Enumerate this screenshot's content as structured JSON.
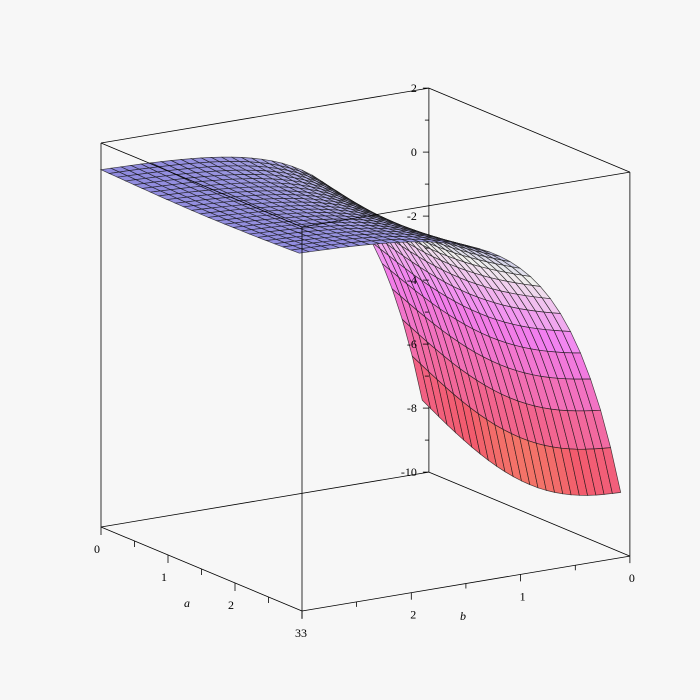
{
  "chart_data": {
    "type": "surface3d",
    "xlabel": "a",
    "ylabel": "b",
    "zlabel": "",
    "xlim": [
      0,
      3
    ],
    "ylim": [
      0,
      3
    ],
    "zlim": [
      -10,
      2
    ],
    "x_ticks": [
      "0",
      "1",
      "2",
      "3"
    ],
    "y_ticks": [
      "0",
      "1",
      "2",
      "3"
    ],
    "z_ticks": [
      "-10",
      "-8",
      "-6",
      "-4",
      "-2",
      "0",
      "2"
    ],
    "grid": false,
    "colors": {
      "background": "#f7f7f7",
      "box": "#000000",
      "mesh": "#111111",
      "surface_low": "#f6f050",
      "surface_mid_red": "#f25b6d",
      "surface_magenta": "#f27ff0",
      "surface_high": "#6a63d8",
      "surface_light": "#f0f0ee"
    }
  }
}
